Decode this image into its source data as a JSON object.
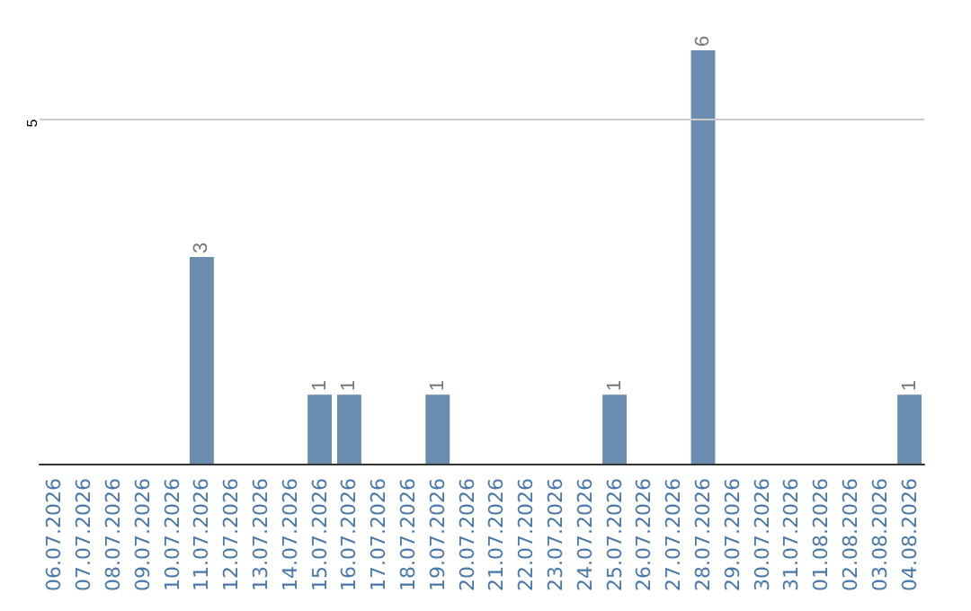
{
  "chart_data": {
    "type": "bar",
    "categories": [
      "06.07.2026",
      "07.07.2026",
      "08.07.2026",
      "09.07.2026",
      "10.07.2026",
      "11.07.2026",
      "12.07.2026",
      "13.07.2026",
      "14.07.2026",
      "15.07.2026",
      "16.07.2026",
      "17.07.2026",
      "18.07.2026",
      "19.07.2026",
      "20.07.2026",
      "21.07.2026",
      "22.07.2026",
      "23.07.2026",
      "24.07.2026",
      "25.07.2026",
      "26.07.2026",
      "27.07.2026",
      "28.07.2026",
      "29.07.2026",
      "30.07.2026",
      "31.07.2026",
      "01.08.2026",
      "02.08.2026",
      "03.08.2026",
      "04.08.2026"
    ],
    "values": [
      0,
      0,
      0,
      0,
      0,
      3,
      0,
      0,
      0,
      1,
      1,
      0,
      0,
      1,
      0,
      0,
      0,
      0,
      0,
      1,
      0,
      0,
      6,
      0,
      0,
      0,
      0,
      0,
      0,
      1
    ],
    "value_labels": [
      null,
      null,
      null,
      null,
      null,
      "3",
      null,
      null,
      null,
      "1",
      "1",
      null,
      null,
      "1",
      null,
      null,
      null,
      null,
      null,
      "1",
      null,
      null,
      "6",
      null,
      null,
      null,
      null,
      null,
      null,
      "1"
    ],
    "color": "#6a8caf",
    "ref_lines": [
      {
        "axis": "y",
        "value": 5,
        "label": "5",
        "color": "#cccccc"
      }
    ]
  }
}
